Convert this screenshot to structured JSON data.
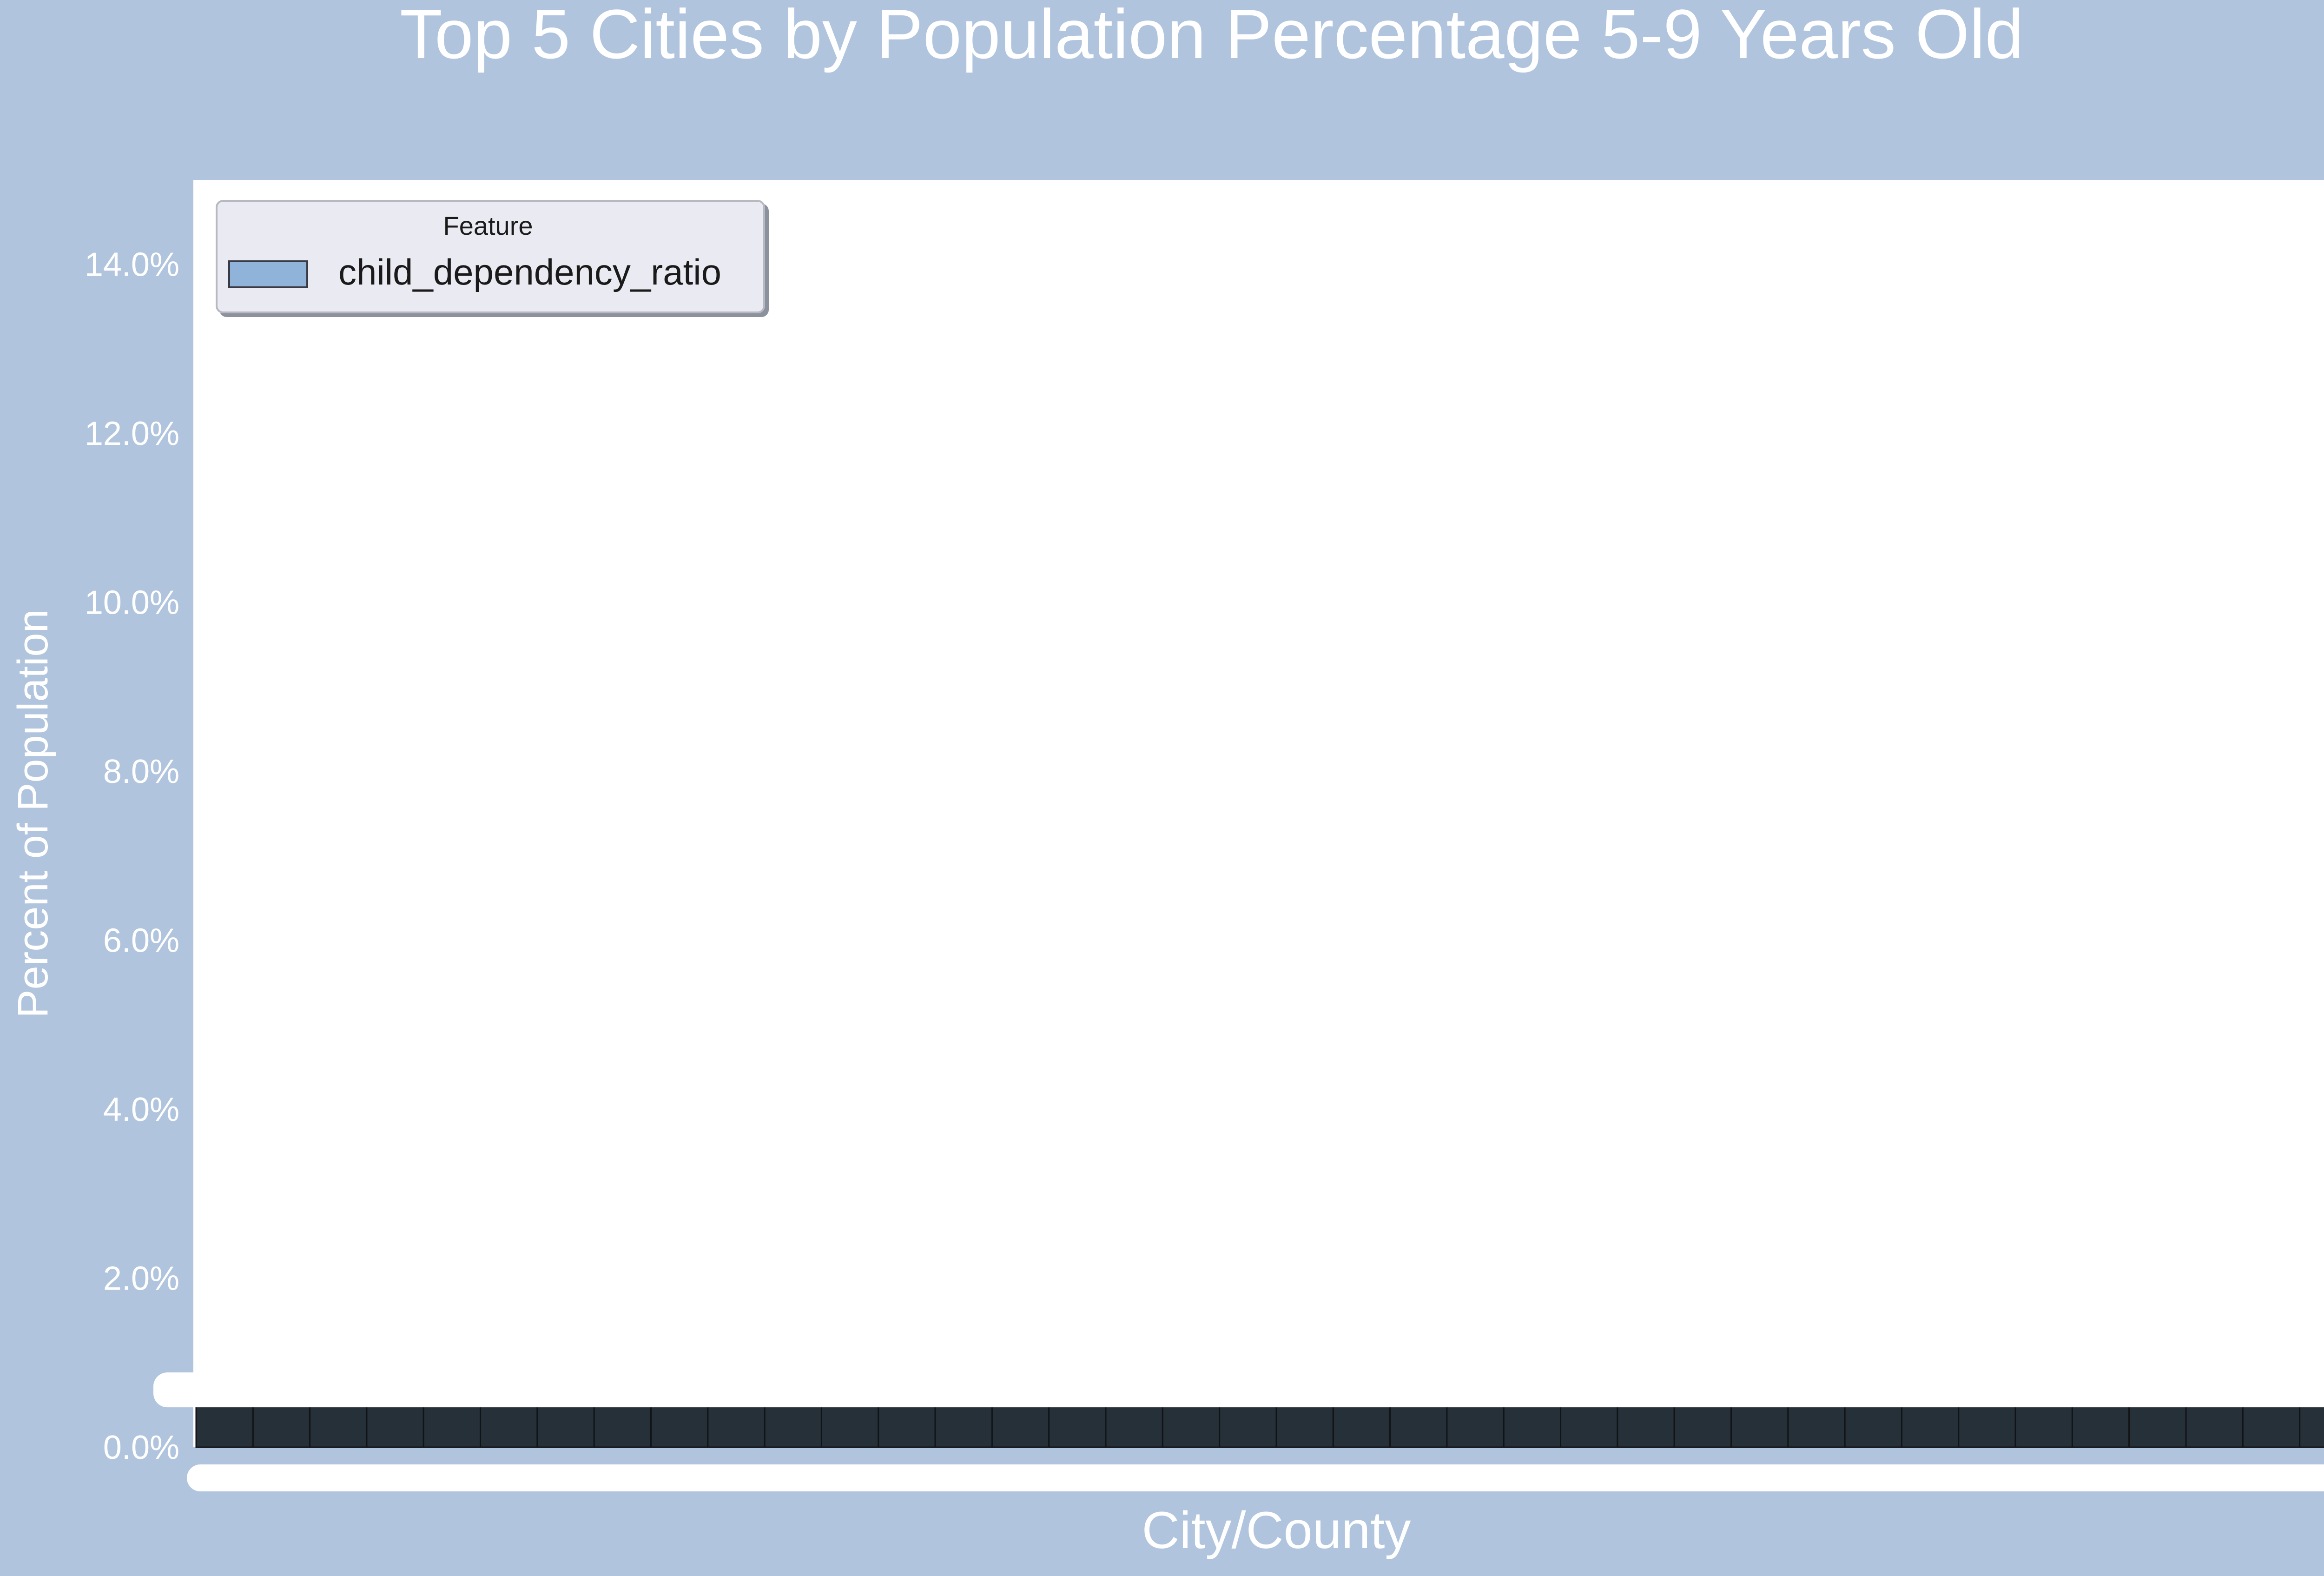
{
  "chart_data": {
    "type": "bar",
    "title": "Top 5 Cities by Population Percentage 5-9 Years Old",
    "xlabel": "City/County",
    "ylabel": "Percent of Population",
    "ylim": [
      0,
      15
    ],
    "yticks": [
      "0.0%",
      "2.0%",
      "4.0%",
      "6.0%",
      "8.0%",
      "10.0%",
      "12.0%",
      "14.0%"
    ],
    "ytick_values": [
      0,
      2,
      4,
      6,
      8,
      10,
      12,
      14
    ],
    "grid": false,
    "legend": {
      "title": "Feature",
      "placement": "top-left",
      "entries": [
        "child_dependency_ratio"
      ]
    },
    "series": [
      {
        "name": "child_dependency_ratio",
        "color": "#8fb3d9",
        "values": [
          0.5,
          0.5,
          0.5,
          0.5,
          0.5,
          0.5,
          0.5,
          0.5,
          0.5,
          0.5,
          0.5,
          0.5,
          0.5,
          0.5,
          0.5,
          0.5,
          0.5,
          0.5,
          0.5,
          0.5,
          0.5,
          0.5,
          0.5,
          0.5,
          0.5,
          0.5,
          0.5,
          0.5,
          0.5,
          0.5,
          0.5,
          0.5,
          0.5,
          0.5,
          0.5,
          0.5,
          0.5,
          0.5
        ]
      }
    ],
    "colors": {
      "figure_background": "#b0c4de",
      "plot_background": "#ffffff",
      "bar_fill": "#263038",
      "text": "#ffffff",
      "legend_background": "#eaeaf2",
      "legend_text": "#1a1a1a"
    }
  }
}
